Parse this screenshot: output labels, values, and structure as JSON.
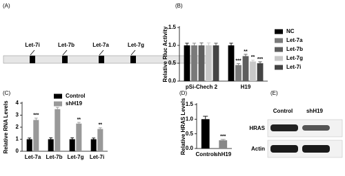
{
  "panel_a": {
    "label": "(A)",
    "genes": [
      "Let-7i",
      "Let-7b",
      "Let-7a",
      "Let-7g"
    ]
  },
  "panel_e": {
    "label": "(E)",
    "lanes": [
      "Control",
      "shH19"
    ],
    "rows": [
      "HRAS",
      "Actin"
    ]
  },
  "chart_data": [
    {
      "type": "bar",
      "panel": "(B)",
      "y_label": "Relative Rluc Activity",
      "categories": [
        "pSi-Chech 2",
        "H19"
      ],
      "series": [
        {
          "name": "NC",
          "color": "#000000",
          "values": [
            1.0,
            1.0
          ],
          "errors": [
            0.06,
            0.06
          ],
          "stars": [
            null,
            null
          ]
        },
        {
          "name": "Let-7a",
          "color": "#7a7a7a",
          "values": [
            1.0,
            0.45
          ],
          "errors": [
            0.06,
            0.04
          ],
          "stars": [
            null,
            "***"
          ]
        },
        {
          "name": "Let-7b",
          "color": "#5e5e5e",
          "values": [
            1.0,
            0.7
          ],
          "errors": [
            0.07,
            0.05
          ],
          "stars": [
            null,
            "**"
          ]
        },
        {
          "name": "Let-7g",
          "color": "#c8c8c8",
          "values": [
            1.0,
            0.55
          ],
          "errors": [
            0.07,
            0.04
          ],
          "stars": [
            null,
            "**"
          ]
        },
        {
          "name": "Let-7i",
          "color": "#444444",
          "values": [
            1.0,
            0.5
          ],
          "errors": [
            0.06,
            0.04
          ],
          "stars": [
            null,
            "***"
          ]
        }
      ],
      "ylim": [
        0,
        1.5
      ],
      "yticks": [
        {
          "value": 0,
          "label": "0.0"
        },
        0.5,
        {
          "value": 1,
          "label": "1.0"
        },
        1.5
      ]
    },
    {
      "type": "bar",
      "panel": "(C)",
      "y_label": "Relative RNA Levels",
      "categories": [
        "Let-7a",
        "Let-7b",
        "Let-7g",
        "Let-7i"
      ],
      "series": [
        {
          "name": "Control",
          "color": "#000000",
          "values": [
            1.0,
            1.0,
            1.0,
            1.0
          ],
          "errors": [
            0.1,
            0.12,
            0.12,
            0.1
          ],
          "stars": [
            null,
            null,
            null,
            null
          ]
        },
        {
          "name": "shH19",
          "color": "#999999",
          "values": [
            2.6,
            3.5,
            2.3,
            1.85
          ],
          "errors": [
            0.15,
            0.15,
            0.1,
            0.1
          ],
          "stars": [
            "***",
            "***",
            "**",
            "**"
          ]
        }
      ],
      "ylim": [
        0,
        4
      ],
      "yticks": [
        0,
        1,
        2,
        3,
        4
      ]
    },
    {
      "type": "bar",
      "panel": "(D)",
      "y_label": "Relative HRAS Levels",
      "categories": [
        "Control",
        "shH19"
      ],
      "values": [
        1.0,
        0.28
      ],
      "errors": [
        0.1,
        0.03
      ],
      "colors": [
        "#000000",
        "#888888"
      ],
      "stars": [
        null,
        "***"
      ],
      "ylim": [
        0,
        1.5
      ],
      "yticks": [
        {
          "value": 0,
          "label": "0.0"
        },
        0.5,
        {
          "value": 1,
          "label": "1.0"
        },
        1.5
      ]
    }
  ]
}
